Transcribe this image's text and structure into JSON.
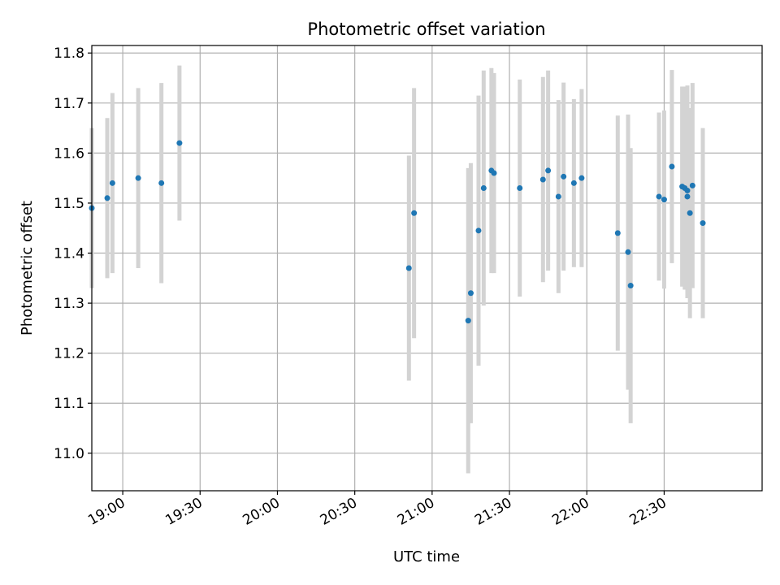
{
  "chart_data": {
    "type": "scatter",
    "title": "Photometric offset variation",
    "xlabel": "UTC time",
    "ylabel": "Photometric offset",
    "xlim": [
      "18:48",
      "23:08"
    ],
    "ylim": [
      10.925,
      11.815
    ],
    "grid": true,
    "x_ticks": [
      "19:00",
      "19:30",
      "20:00",
      "20:30",
      "21:00",
      "21:30",
      "22:00",
      "22:30"
    ],
    "y_ticks": [
      "11.0",
      "11.1",
      "11.2",
      "11.3",
      "11.4",
      "11.5",
      "11.6",
      "11.7",
      "11.8"
    ],
    "colors": {
      "points": "#1f77b4",
      "errorbars": "#d3d3d3",
      "grid": "#b0b0b0"
    },
    "points": [
      {
        "x": "18:48",
        "y": 11.49,
        "err": 0.16
      },
      {
        "x": "18:54",
        "y": 11.51,
        "err": 0.16
      },
      {
        "x": "18:56",
        "y": 11.54,
        "err": 0.18
      },
      {
        "x": "19:06",
        "y": 11.55,
        "err": 0.18
      },
      {
        "x": "19:15",
        "y": 11.54,
        "err": 0.2
      },
      {
        "x": "19:22",
        "y": 11.62,
        "err": 0.155
      },
      {
        "x": "20:51",
        "y": 11.37,
        "err": 0.225
      },
      {
        "x": "20:53",
        "y": 11.48,
        "err": 0.25
      },
      {
        "x": "21:14",
        "y": 11.265,
        "err": 0.305
      },
      {
        "x": "21:15",
        "y": 11.32,
        "err": 0.26
      },
      {
        "x": "21:18",
        "y": 11.445,
        "err": 0.27
      },
      {
        "x": "21:20",
        "y": 11.53,
        "err": 0.235
      },
      {
        "x": "21:23",
        "y": 11.565,
        "err": 0.205
      },
      {
        "x": "21:24",
        "y": 11.56,
        "err": 0.2
      },
      {
        "x": "21:34",
        "y": 11.53,
        "err": 0.217
      },
      {
        "x": "21:43",
        "y": 11.547,
        "err": 0.205
      },
      {
        "x": "21:45",
        "y": 11.565,
        "err": 0.2
      },
      {
        "x": "21:49",
        "y": 11.513,
        "err": 0.193
      },
      {
        "x": "21:51",
        "y": 11.553,
        "err": 0.188
      },
      {
        "x": "21:55",
        "y": 11.54,
        "err": 0.168
      },
      {
        "x": "21:58",
        "y": 11.55,
        "err": 0.178
      },
      {
        "x": "22:12",
        "y": 11.44,
        "err": 0.235
      },
      {
        "x": "22:16",
        "y": 11.402,
        "err": 0.275
      },
      {
        "x": "22:17",
        "y": 11.335,
        "err": 0.275
      },
      {
        "x": "22:28",
        "y": 11.513,
        "err": 0.168
      },
      {
        "x": "22:30",
        "y": 11.507,
        "err": 0.178
      },
      {
        "x": "22:33",
        "y": 11.573,
        "err": 0.193
      },
      {
        "x": "22:37",
        "y": 11.533,
        "err": 0.2
      },
      {
        "x": "22:38",
        "y": 11.53,
        "err": 0.203
      },
      {
        "x": "22:39",
        "y": 11.513,
        "err": 0.203
      },
      {
        "x": "22:39",
        "y": 11.525,
        "err": 0.21
      },
      {
        "x": "22:40",
        "y": 11.48,
        "err": 0.21
      },
      {
        "x": "22:41",
        "y": 11.535,
        "err": 0.205
      },
      {
        "x": "22:45",
        "y": 11.46,
        "err": 0.19
      }
    ]
  }
}
